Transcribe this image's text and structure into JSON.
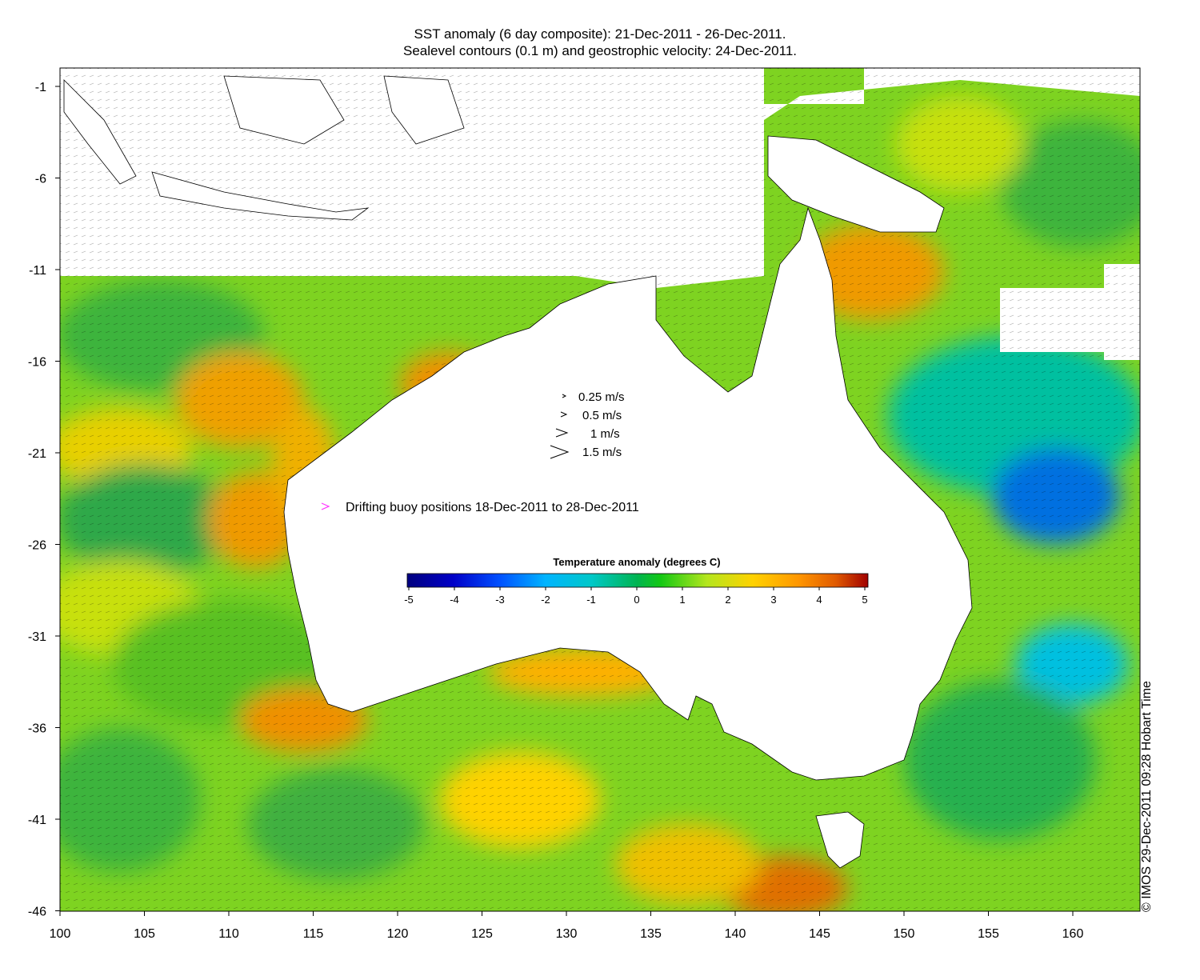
{
  "title_line1": "SST anomaly (6 day composite): 21-Dec-2011 - 26-Dec-2011.",
  "title_line2": "Sealevel contours (0.1 m) and geostrophic velocity: 24-Dec-2011.",
  "x_ticks": [
    "100",
    "105",
    "110",
    "115",
    "120",
    "125",
    "130",
    "135",
    "140",
    "145",
    "150",
    "155",
    "160"
  ],
  "y_ticks": [
    "-1",
    "-6",
    "-11",
    "-16",
    "-21",
    "-26",
    "-31",
    "-36",
    "-41",
    "-46"
  ],
  "velocity_legend": [
    "0.25 m/s",
    "0.5 m/s",
    "1 m/s",
    "1.5 m/s"
  ],
  "buoy_legend": "Drifting buoy positions 18-Dec-2011 to 28-Dec-2011",
  "colorbar_title": "Temperature anomaly (degrees C)",
  "colorbar_ticks": [
    "-5",
    "-4",
    "-3",
    "-2",
    "-1",
    "0",
    "1",
    "2",
    "3",
    "4",
    "5"
  ],
  "colorbar_colors": [
    "#00007f",
    "#0000c8",
    "#0050ff",
    "#00b4ff",
    "#00c8c8",
    "#00b450",
    "#14c814",
    "#b4e61e",
    "#ffd200",
    "#ff9600",
    "#e05a00",
    "#a00000"
  ],
  "credit": "© IMOS 29-Dec-2011 09:28 Hobart Time",
  "colors": {
    "land": "#ffffff",
    "coast": "#000000",
    "contour": "#dddddd",
    "buoy": "#ff33ff",
    "arrow": "#000000"
  }
}
